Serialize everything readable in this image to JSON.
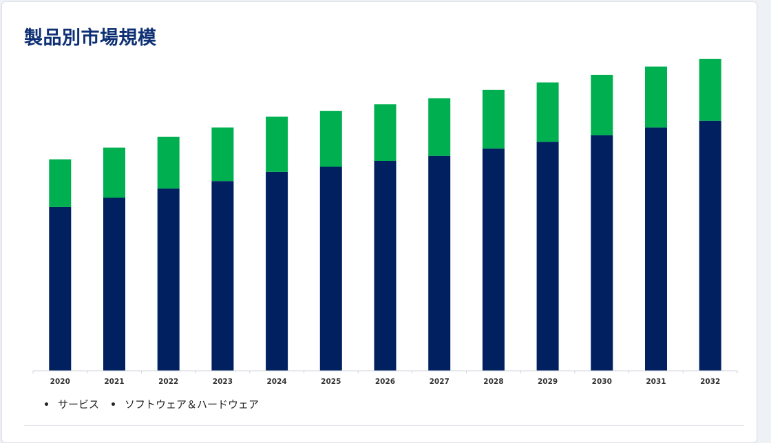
{
  "card": {
    "title": "製品別市場規模"
  },
  "chart_data": {
    "type": "bar",
    "stacked": true,
    "categories": [
      "2020",
      "2021",
      "2022",
      "2023",
      "2024",
      "2025",
      "2026",
      "2027",
      "2028",
      "2029",
      "2030",
      "2031",
      "2032"
    ],
    "series": [
      {
        "name": "サービス",
        "color": "#002060",
        "values": [
          196,
          207,
          218,
          227,
          238,
          244,
          251,
          257,
          266,
          274,
          282,
          291,
          299
        ]
      },
      {
        "name": "ソフトウェア＆ハードウェア",
        "color": "#00b050",
        "values": [
          57,
          60,
          62,
          64,
          66,
          67,
          68,
          69,
          70,
          71,
          72,
          73,
          74
        ]
      }
    ],
    "ylim": [
      0,
      400
    ],
    "grid": false,
    "legend": "bottom-left"
  }
}
